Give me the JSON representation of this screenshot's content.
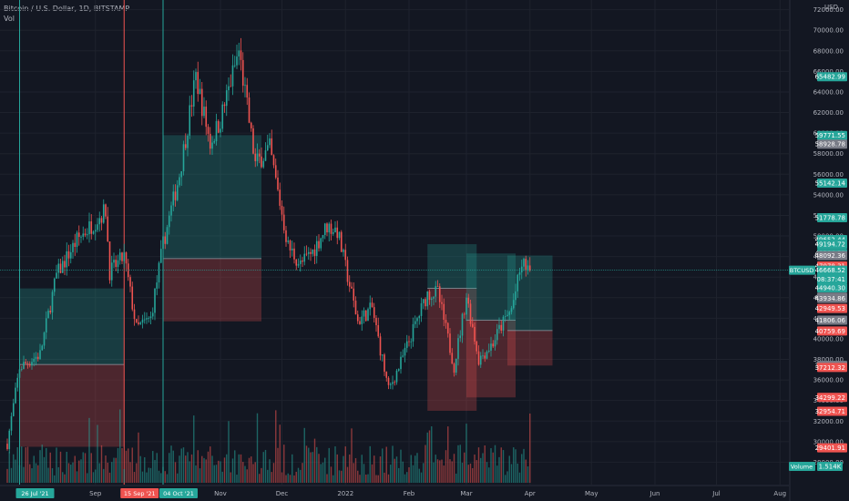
{
  "header": {
    "symbol_line": "Bitcoin / U.S. Dollar, 1D, BITSTAMP",
    "volume_label": "Vol"
  },
  "axis": {
    "currency": "USD"
  },
  "colors": {
    "bg": "#131722",
    "up": "#26a69a",
    "down": "#ef5350",
    "grey": "#787b86",
    "grid": "#1e222d"
  },
  "chart_data": {
    "type": "candlestick",
    "ylim": [
      26000,
      72500
    ],
    "y_ticks": [
      28000,
      30000,
      32000,
      34000,
      36000,
      38000,
      40000,
      42000,
      44000,
      46000,
      48000,
      50000,
      52000,
      54000,
      56000,
      58000,
      60000,
      62000,
      64000,
      66000,
      68000,
      70000,
      72000
    ],
    "x_tick_labels": [
      {
        "date": "2021-09-01",
        "label": "Sep"
      },
      {
        "date": "2021-11-01",
        "label": "Nov"
      },
      {
        "date": "2021-12-01",
        "label": "Dec"
      },
      {
        "date": "2022-01-01",
        "label": "2022"
      },
      {
        "date": "2022-02-01",
        "label": "Feb"
      },
      {
        "date": "2022-03-01",
        "label": "Mar"
      },
      {
        "date": "2022-04-01",
        "label": "Apr"
      },
      {
        "date": "2022-05-01",
        "label": "May"
      },
      {
        "date": "2022-06-01",
        "label": "Jun"
      },
      {
        "date": "2022-07-01",
        "label": "Jul"
      },
      {
        "date": "2022-08-01",
        "label": "Aug"
      }
    ],
    "vertical_markers": [
      {
        "date": "2021-07-26",
        "label": "26 Jul '21",
        "color": "#26a69a"
      },
      {
        "date": "2021-09-15",
        "label": "15 Sep '21",
        "color": "#ef5350"
      },
      {
        "date": "2021-10-04",
        "label": "04 Oct '21",
        "color": "#26a69a"
      }
    ],
    "current_price": {
      "symbol": "BTCUSD",
      "price": 46668.52,
      "countdown": "08:37:41"
    },
    "price_labels": [
      {
        "price": 65482.99,
        "text": "65482.99",
        "color": "#26a69a"
      },
      {
        "price": 59771.55,
        "text": "59771.55",
        "color": "#26a69a"
      },
      {
        "price": 58928.78,
        "text": "58928.78",
        "color": "#787b86"
      },
      {
        "price": 55142.14,
        "text": "55142.14",
        "color": "#26a69a"
      },
      {
        "price": 51778.78,
        "text": "51778.78",
        "color": "#26a69a"
      },
      {
        "price": 49652.44,
        "text": "49652.44",
        "color": "#26a69a"
      },
      {
        "price": 49220.46,
        "text": "49220.46",
        "color": "#26a69a"
      },
      {
        "price": 49194.72,
        "text": "49194.72",
        "color": "#26a69a"
      },
      {
        "price": 48304.52,
        "text": "48304.52",
        "color": "#26a69a"
      },
      {
        "price": 48092.36,
        "text": "48092.36",
        "color": "#787b86"
      },
      {
        "price": 47078.31,
        "text": "47078.31",
        "color": "#ef5350"
      },
      {
        "price": 44940.3,
        "text": "44940.30",
        "color": "#26a69a"
      },
      {
        "price": 44046.91,
        "text": "44046.91",
        "color": "#787b86"
      },
      {
        "price": 43934.86,
        "text": "43934.86",
        "color": "#787b86"
      },
      {
        "price": 42949.53,
        "text": "42949.53",
        "color": "#ef5350"
      },
      {
        "price": 41806.06,
        "text": "41806.06",
        "color": "#787b86"
      },
      {
        "price": 40759.69,
        "text": "40759.69",
        "color": "#ef5350"
      },
      {
        "price": 37412.56,
        "text": "37412.56",
        "color": "#787b86"
      },
      {
        "price": 37212.32,
        "text": "37212.32",
        "color": "#ef5350"
      },
      {
        "price": 34299.22,
        "text": "34299.22",
        "color": "#ef5350"
      },
      {
        "price": 32954.71,
        "text": "32954.71",
        "color": "#ef5350"
      },
      {
        "price": 29401.91,
        "text": "29401.91",
        "color": "#ef5350"
      }
    ],
    "volume_label": {
      "name": "Volume",
      "value": "1.514K"
    },
    "positions": [
      {
        "start": "2021-07-26",
        "end": "2021-09-15",
        "entry": 37500,
        "target": 44900,
        "stop": 29500
      },
      {
        "start": "2021-10-04",
        "end": "2021-11-21",
        "entry": 47800,
        "target": 59800,
        "stop": 41700
      },
      {
        "start": "2022-02-10",
        "end": "2022-03-06",
        "entry": 44900,
        "target": 49200,
        "stop": 33000
      },
      {
        "start": "2022-03-01",
        "end": "2022-03-25",
        "entry": 41800,
        "target": 48300,
        "stop": 34300
      },
      {
        "start": "2022-03-21",
        "end": "2022-04-12",
        "entry": 40800,
        "target": 48100,
        "stop": 37400
      }
    ],
    "anchors": [
      [
        "2021-07-20",
        29800
      ],
      [
        "2021-07-26",
        37200
      ],
      [
        "2021-08-05",
        38500
      ],
      [
        "2021-08-13",
        46200
      ],
      [
        "2021-08-23",
        49600
      ],
      [
        "2021-09-06",
        52500
      ],
      [
        "2021-09-08",
        46500
      ],
      [
        "2021-09-15",
        48000
      ],
      [
        "2021-09-21",
        41000
      ],
      [
        "2021-09-28",
        42000
      ],
      [
        "2021-10-04",
        49200
      ],
      [
        "2021-10-12",
        56000
      ],
      [
        "2021-10-20",
        65500
      ],
      [
        "2021-10-27",
        59000
      ],
      [
        "2021-11-01",
        61300
      ],
      [
        "2021-11-10",
        68000
      ],
      [
        "2021-11-18",
        57000
      ],
      [
        "2021-11-25",
        58500
      ],
      [
        "2021-12-04",
        49000
      ],
      [
        "2021-12-10",
        47200
      ],
      [
        "2021-12-16",
        48500
      ],
      [
        "2021-12-23",
        51000
      ],
      [
        "2021-12-28",
        50500
      ],
      [
        "2022-01-07",
        41700
      ],
      [
        "2022-01-14",
        43000
      ],
      [
        "2022-01-22",
        35000
      ],
      [
        "2022-01-28",
        37700
      ],
      [
        "2022-02-06",
        42400
      ],
      [
        "2022-02-10",
        44400
      ],
      [
        "2022-02-15",
        44500
      ],
      [
        "2022-02-23",
        37300
      ],
      [
        "2022-03-01",
        44200
      ],
      [
        "2022-03-07",
        38000
      ],
      [
        "2022-03-14",
        39600
      ],
      [
        "2022-03-17",
        40900
      ],
      [
        "2022-03-23",
        42900
      ],
      [
        "2022-03-28",
        47200
      ],
      [
        "2022-03-30",
        47100
      ],
      [
        "2022-04-01",
        46668
      ]
    ]
  }
}
